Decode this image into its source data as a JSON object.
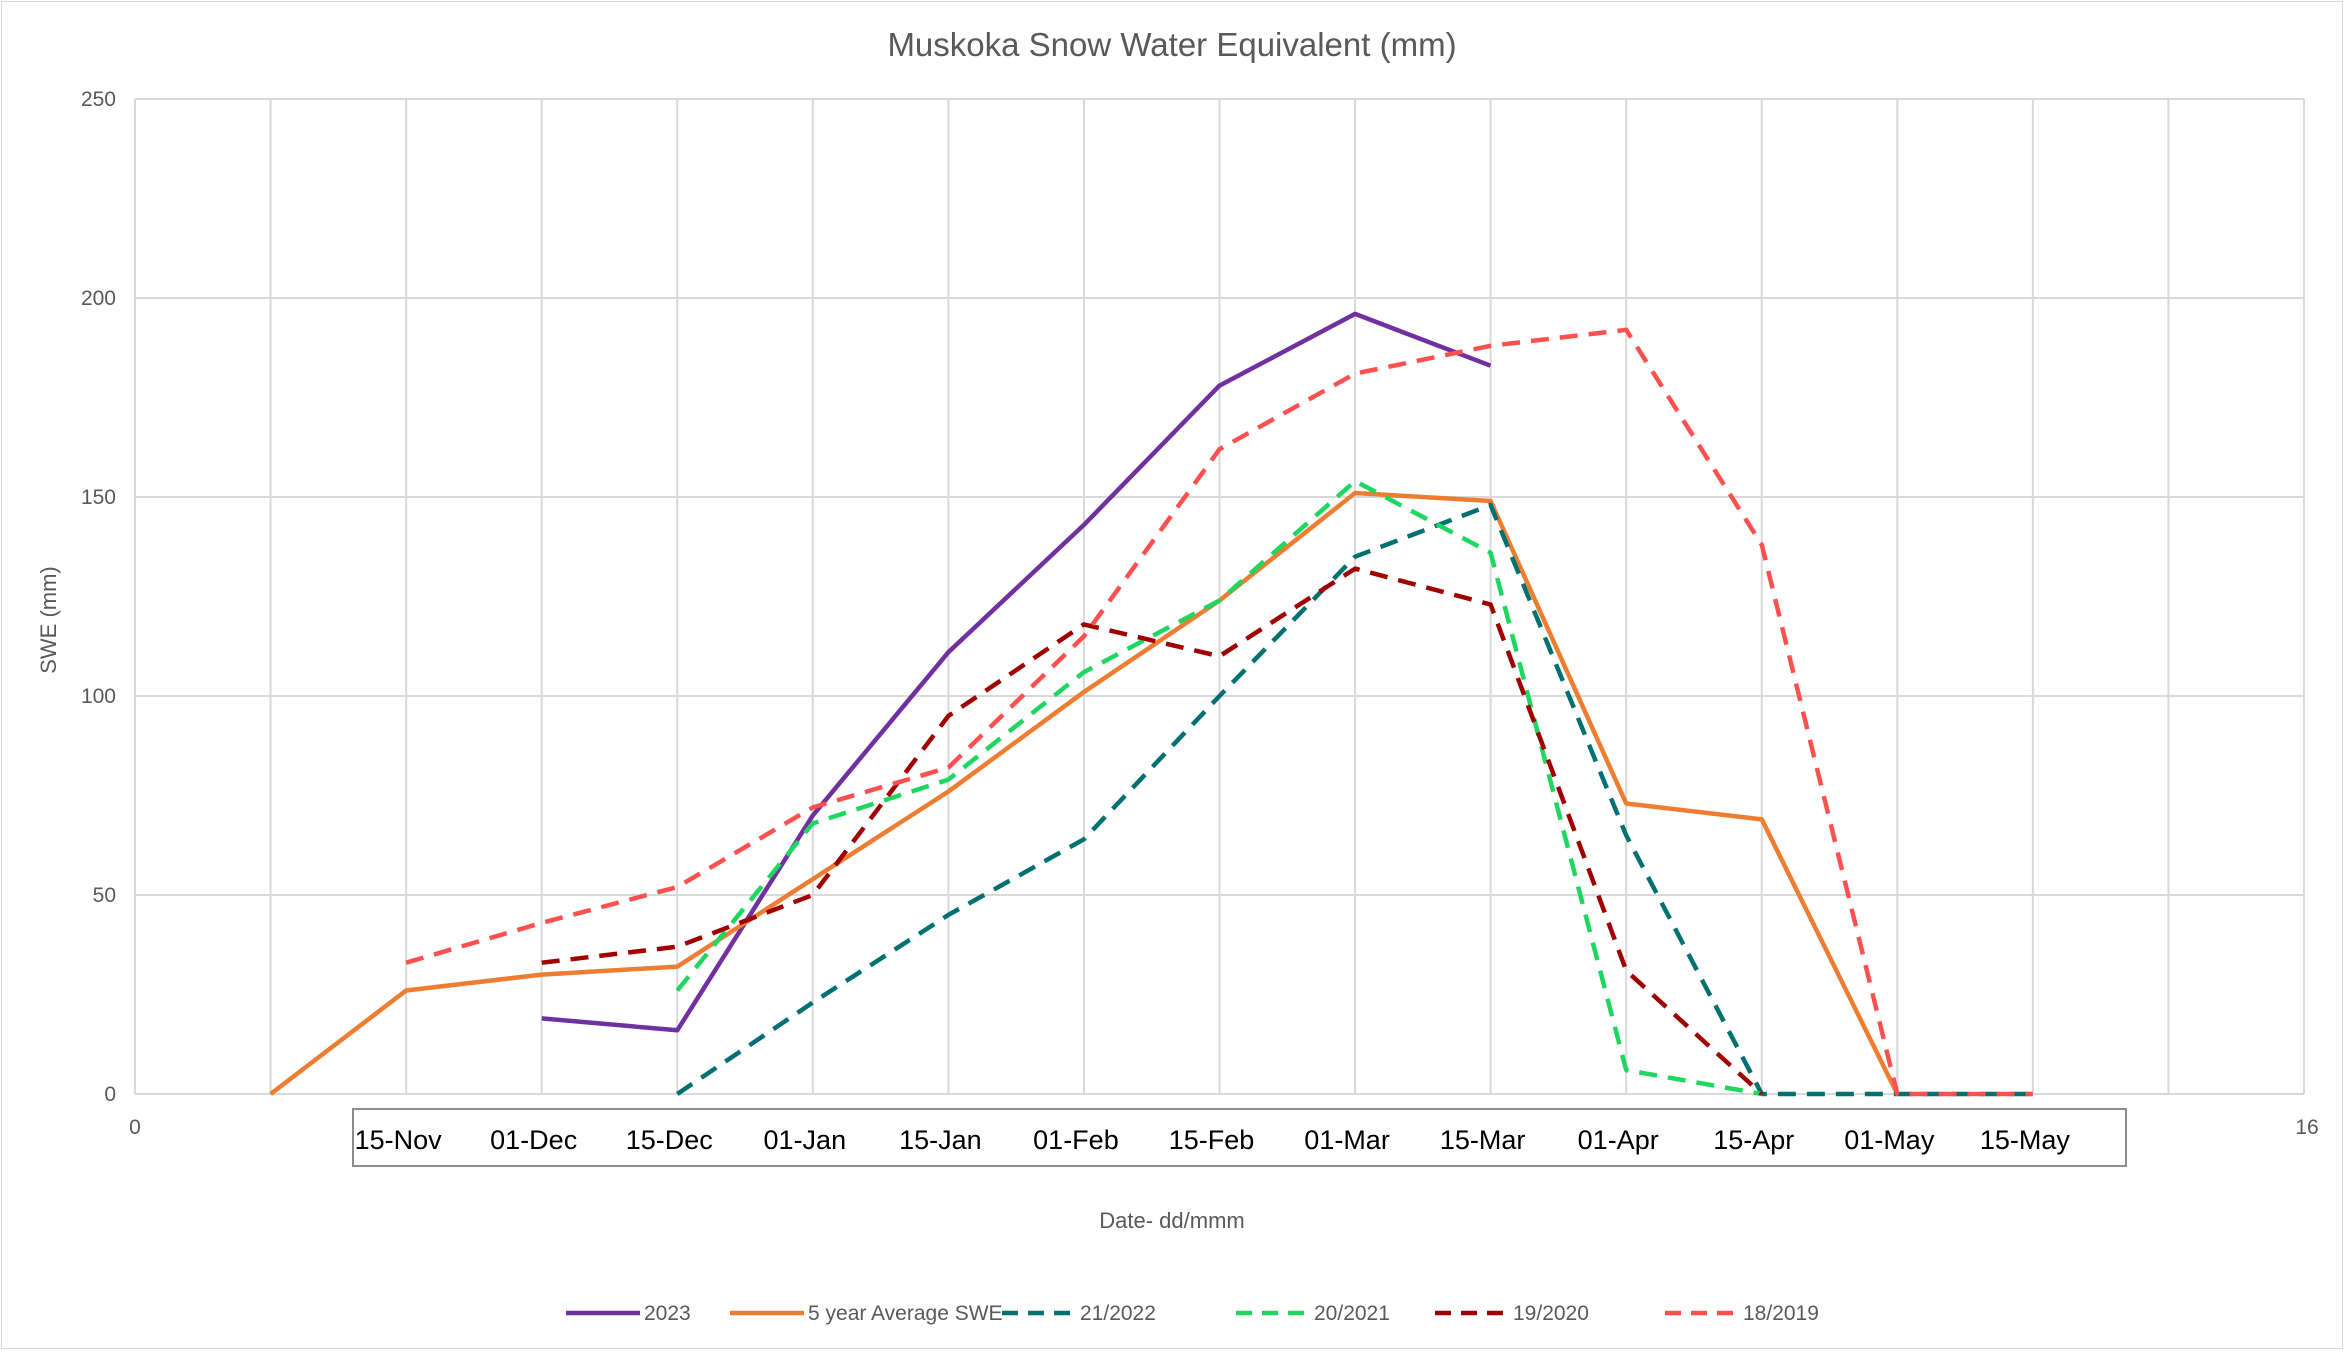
{
  "chart_data": {
    "type": "line",
    "title": "Muskoka Snow Water Equivalent (mm)",
    "ylabel": "SWE (mm)",
    "xlabel": "Date- dd/mmm",
    "ylim": [
      0,
      250
    ],
    "xlim": [
      0,
      16
    ],
    "y_ticks": [
      "0",
      "50",
      "100",
      "150",
      "200",
      "250"
    ],
    "x_axis_ticks": [
      "0",
      "16"
    ],
    "date_labels": [
      "15-Nov",
      "01-Dec",
      "15-Dec",
      "01-Jan",
      "15-Jan",
      "01-Feb",
      "15-Feb",
      "01-Mar",
      "15-Mar",
      "01-Apr",
      "15-Apr",
      "01-May",
      "15-May"
    ],
    "grid": true,
    "legend_position": "bottom",
    "series": [
      {
        "name": "2023",
        "color": "#7030a0",
        "style": "solid",
        "x": [
          3,
          4,
          5,
          6,
          7,
          8,
          9,
          10
        ],
        "y": [
          19,
          16,
          70,
          111,
          143,
          178,
          196,
          183
        ]
      },
      {
        "name": "5 year Average SWE",
        "color": "#ed7d31",
        "style": "solid",
        "x": [
          1,
          2,
          3,
          4,
          5,
          6,
          7,
          8,
          9,
          10,
          11,
          12,
          13
        ],
        "y": [
          0,
          26,
          30,
          32,
          54,
          76,
          101,
          124,
          151,
          149,
          73,
          69,
          0
        ]
      },
      {
        "name": "21/2022",
        "color": "#007070",
        "style": "dashed",
        "x": [
          4,
          5,
          6,
          7,
          8,
          9,
          10,
          11,
          12,
          13,
          14
        ],
        "y": [
          0,
          23,
          45,
          64,
          100,
          135,
          148,
          65,
          0,
          0,
          0
        ]
      },
      {
        "name": "20/2021",
        "color": "#1ed760",
        "style": "dashed",
        "x": [
          4,
          5,
          6,
          7,
          8,
          9,
          10,
          11,
          12
        ],
        "y": [
          26,
          68,
          79,
          106,
          124,
          154,
          136,
          6,
          0
        ]
      },
      {
        "name": "19/2020",
        "color": "#a00000",
        "style": "dashed",
        "x": [
          3,
          4,
          5,
          6,
          7,
          8,
          9,
          10,
          11,
          12
        ],
        "y": [
          33,
          37,
          50,
          95,
          118,
          110,
          132,
          123,
          31,
          0
        ]
      },
      {
        "name": "18/2019",
        "color": "#ff5050",
        "style": "dashed",
        "x": [
          2,
          3,
          4,
          5,
          6,
          7,
          8,
          9,
          10,
          11,
          12,
          13,
          14
        ],
        "y": [
          33,
          43,
          52,
          72,
          82,
          115,
          162,
          181,
          188,
          192,
          138,
          0,
          0
        ]
      }
    ]
  }
}
